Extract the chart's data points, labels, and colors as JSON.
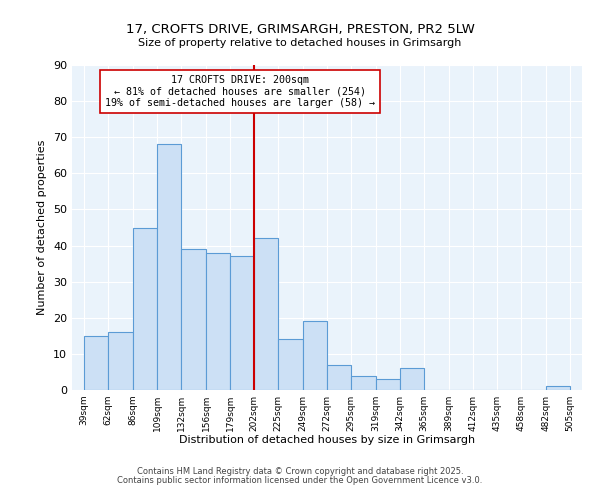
{
  "title": "17, CROFTS DRIVE, GRIMSARGH, PRESTON, PR2 5LW",
  "subtitle": "Size of property relative to detached houses in Grimsargh",
  "xlabel": "Distribution of detached houses by size in Grimsargh",
  "ylabel": "Number of detached properties",
  "bins": [
    39,
    62,
    86,
    109,
    132,
    156,
    179,
    202,
    225,
    249,
    272,
    295,
    319,
    342,
    365,
    389,
    412,
    435,
    458,
    482,
    505
  ],
  "counts": [
    15,
    16,
    45,
    68,
    39,
    38,
    37,
    42,
    14,
    19,
    7,
    4,
    3,
    6,
    0,
    0,
    0,
    0,
    0,
    1
  ],
  "bar_facecolor": "#cce0f5",
  "bar_edgecolor": "#5b9bd5",
  "vline_x": 202,
  "vline_color": "#cc0000",
  "annotation_title": "17 CROFTS DRIVE: 200sqm",
  "annotation_line1": "← 81% of detached houses are smaller (254)",
  "annotation_line2": "19% of semi-detached houses are larger (58) →",
  "annotation_box_edgecolor": "#cc0000",
  "annotation_box_facecolor": "#ffffff",
  "ylim": [
    0,
    90
  ],
  "yticks": [
    0,
    10,
    20,
    30,
    40,
    50,
    60,
    70,
    80,
    90
  ],
  "bg_color": "#eaf3fb",
  "footer1": "Contains HM Land Registry data © Crown copyright and database right 2025.",
  "footer2": "Contains public sector information licensed under the Open Government Licence v3.0.",
  "tick_labels": [
    "39sqm",
    "62sqm",
    "86sqm",
    "109sqm",
    "132sqm",
    "156sqm",
    "179sqm",
    "202sqm",
    "225sqm",
    "249sqm",
    "272sqm",
    "295sqm",
    "319sqm",
    "342sqm",
    "365sqm",
    "389sqm",
    "412sqm",
    "435sqm",
    "458sqm",
    "482sqm",
    "505sqm"
  ]
}
